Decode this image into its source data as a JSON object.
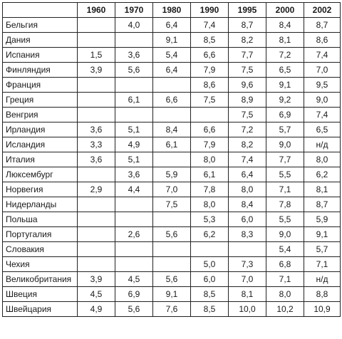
{
  "table": {
    "headers": [
      "",
      "1960",
      "1970",
      "1980",
      "1990",
      "1995",
      "2000",
      "2002"
    ],
    "rows": [
      [
        "Бельгия",
        "",
        "4,0",
        "6,4",
        "7,4",
        "8,7",
        "8,4",
        "8,7"
      ],
      [
        "Дания",
        "",
        "",
        "9,1",
        "8,5",
        "8,2",
        "8,1",
        "8,6"
      ],
      [
        "Испания",
        "1,5",
        "3,6",
        "5,4",
        "6,6",
        "7,7",
        "7,2",
        "7,4"
      ],
      [
        "Финляндия",
        "3,9",
        "5,6",
        "6,4",
        "7,9",
        "7,5",
        "6,5",
        "7,0"
      ],
      [
        "Франция",
        "",
        "",
        "",
        "8,6",
        "9,6",
        "9,1",
        "9,5"
      ],
      [
        "Греция",
        "",
        "6,1",
        "6,6",
        "7,5",
        "8,9",
        "9,2",
        "9,0"
      ],
      [
        "Венгрия",
        "",
        "",
        "",
        "",
        "7,5",
        "6,9",
        "7,4"
      ],
      [
        "Ирландия",
        "3,6",
        "5,1",
        "8,4",
        "6,6",
        "7,2",
        "5,7",
        "6,5"
      ],
      [
        "Исландия",
        "3,3",
        "4,9",
        "6,1",
        "7,9",
        "8,2",
        "9,0",
        "н/д"
      ],
      [
        "Италия",
        "3,6",
        "5,1",
        "",
        "8,0",
        "7,4",
        "7,7",
        "8,0"
      ],
      [
        "Люксембург",
        "",
        "3,6",
        "5,9",
        "6,1",
        "6,4",
        "5,5",
        "6,2"
      ],
      [
        "Норвегия",
        "2,9",
        "4,4",
        "7,0",
        "7,8",
        "8,0",
        "7,1",
        "8,1"
      ],
      [
        "Нидерланды",
        "",
        "",
        "7,5",
        "8,0",
        "8,4",
        "7,8",
        "8,7"
      ],
      [
        "Польша",
        "",
        "",
        "",
        "5,3",
        "6,0",
        "5,5",
        "5,9"
      ],
      [
        "Португалия",
        "",
        "2,6",
        "5,6",
        "6,2",
        "8,3",
        "9,0",
        "9,1"
      ],
      [
        "Словакия",
        "",
        "",
        "",
        "",
        "",
        "5,4",
        "5,7"
      ],
      [
        "Чехия",
        "",
        "",
        "",
        "5,0",
        "7,3",
        "6,8",
        "7,1"
      ],
      [
        "Великобритания",
        "3,9",
        "4,5",
        "5,6",
        "6,0",
        "7,0",
        "7,1",
        "н/д"
      ],
      [
        "Швеция",
        "4,5",
        "6,9",
        "9,1",
        "8,5",
        "8,1",
        "8,0",
        "8,8"
      ],
      [
        "Швейцария",
        "4,9",
        "5,6",
        "7,6",
        "8,5",
        "10,0",
        "10,2",
        "10,9"
      ]
    ]
  }
}
